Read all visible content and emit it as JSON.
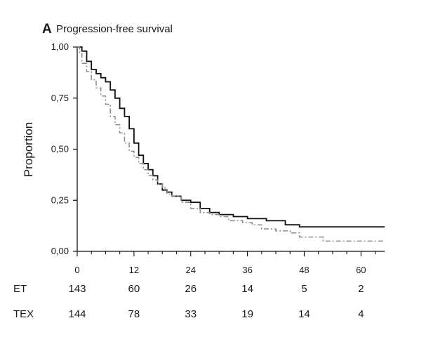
{
  "chart_data": {
    "type": "line",
    "panel_label": "A",
    "title": "Progression-free survival",
    "ylabel": "Proportion",
    "xlabel": "",
    "xlim": [
      0,
      65
    ],
    "ylim": [
      0,
      1
    ],
    "xticks": [
      0,
      12,
      24,
      36,
      48,
      60
    ],
    "xtick_labels": [
      "0",
      "12",
      "24",
      "36",
      "48",
      "60"
    ],
    "yticks": [
      0,
      0.25,
      0.5,
      0.75,
      1
    ],
    "ytick_labels": [
      "0,00",
      "0,25",
      "0,50",
      "0,75",
      "1,00"
    ],
    "grid": false,
    "series": [
      {
        "name": "ET",
        "color": "#111111",
        "dash": "solid",
        "points": [
          [
            0,
            1.0
          ],
          [
            0.5,
            1.0
          ],
          [
            1,
            0.98
          ],
          [
            2,
            0.93
          ],
          [
            3,
            0.89
          ],
          [
            4,
            0.87
          ],
          [
            5,
            0.85
          ],
          [
            6,
            0.83
          ],
          [
            7,
            0.79
          ],
          [
            8,
            0.75
          ],
          [
            9,
            0.7
          ],
          [
            10,
            0.66
          ],
          [
            11,
            0.6
          ],
          [
            12,
            0.53
          ],
          [
            13,
            0.47
          ],
          [
            14,
            0.43
          ],
          [
            15,
            0.4
          ],
          [
            16,
            0.37
          ],
          [
            17,
            0.33
          ],
          [
            18,
            0.3
          ],
          [
            19,
            0.29
          ],
          [
            20,
            0.27
          ],
          [
            22,
            0.25
          ],
          [
            24,
            0.24
          ],
          [
            26,
            0.21
          ],
          [
            28,
            0.19
          ],
          [
            30,
            0.18
          ],
          [
            33,
            0.17
          ],
          [
            36,
            0.16
          ],
          [
            40,
            0.15
          ],
          [
            44,
            0.13
          ],
          [
            47,
            0.12
          ],
          [
            52,
            0.12
          ],
          [
            58,
            0.12
          ],
          [
            65,
            0.12
          ]
        ]
      },
      {
        "name": "TEX",
        "color": "#8a8a8a",
        "dash": "dashdot",
        "points": [
          [
            0,
            1.0
          ],
          [
            0.5,
            0.97
          ],
          [
            1,
            0.92
          ],
          [
            2,
            0.88
          ],
          [
            3,
            0.84
          ],
          [
            4,
            0.8
          ],
          [
            5,
            0.76
          ],
          [
            6,
            0.72
          ],
          [
            7,
            0.66
          ],
          [
            8,
            0.62
          ],
          [
            9,
            0.58
          ],
          [
            10,
            0.53
          ],
          [
            11,
            0.49
          ],
          [
            12,
            0.46
          ],
          [
            13,
            0.43
          ],
          [
            14,
            0.4
          ],
          [
            15,
            0.37
          ],
          [
            16,
            0.35
          ],
          [
            17,
            0.33
          ],
          [
            18,
            0.31
          ],
          [
            19,
            0.28
          ],
          [
            20,
            0.27
          ],
          [
            22,
            0.24
          ],
          [
            24,
            0.21
          ],
          [
            26,
            0.19
          ],
          [
            28,
            0.18
          ],
          [
            30,
            0.17
          ],
          [
            32,
            0.15
          ],
          [
            35,
            0.14
          ],
          [
            37,
            0.13
          ],
          [
            39,
            0.11
          ],
          [
            42,
            0.1
          ],
          [
            45,
            0.09
          ],
          [
            47,
            0.07
          ],
          [
            50,
            0.07
          ],
          [
            52,
            0.05
          ],
          [
            58,
            0.05
          ],
          [
            65,
            0.05
          ]
        ]
      }
    ],
    "risk_table": {
      "rows": [
        {
          "label": "ET",
          "values": [
            "143",
            "60",
            "26",
            "14",
            "5",
            "2"
          ]
        },
        {
          "label": "TEX",
          "values": [
            "144",
            "78",
            "33",
            "19",
            "14",
            "4"
          ]
        }
      ]
    }
  }
}
